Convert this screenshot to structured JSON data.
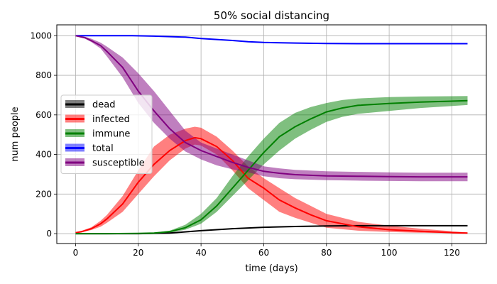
{
  "chart_data": {
    "type": "area",
    "title": "50% social distancing",
    "xlabel": "time (days)",
    "ylabel": "num people",
    "xlim": [
      -6,
      131
    ],
    "ylim": [
      -50,
      1055
    ],
    "xticks": [
      0,
      20,
      40,
      60,
      80,
      100,
      120
    ],
    "yticks": [
      0,
      200,
      400,
      600,
      800,
      1000
    ],
    "grid": true,
    "legend_position": "center-left",
    "series": [
      {
        "name": "dead",
        "color": "#000000",
        "x": [
          0,
          20,
          30,
          40,
          50,
          60,
          70,
          80,
          90,
          100,
          110,
          125
        ],
        "mean": [
          0,
          0,
          3,
          15,
          25,
          32,
          36,
          39,
          40,
          40,
          40,
          40
        ],
        "low": [
          0,
          0,
          2,
          13,
          23,
          30,
          34,
          37,
          38,
          38,
          38,
          38
        ],
        "high": [
          0,
          0,
          4,
          17,
          27,
          34,
          38,
          41,
          42,
          42,
          42,
          42
        ]
      },
      {
        "name": "infected",
        "color": "#ff0000",
        "x": [
          0,
          2,
          5,
          8,
          10,
          15,
          20,
          25,
          30,
          35,
          38,
          40,
          45,
          50,
          55,
          60,
          65,
          70,
          75,
          80,
          90,
          100,
          110,
          120,
          125
        ],
        "mean": [
          5,
          10,
          25,
          50,
          75,
          150,
          260,
          350,
          420,
          470,
          485,
          480,
          440,
          370,
          280,
          230,
          170,
          130,
          95,
          65,
          35,
          20,
          12,
          5,
          3
        ],
        "low": [
          3,
          8,
          18,
          35,
          55,
          110,
          200,
          290,
          370,
          430,
          450,
          445,
          400,
          320,
          230,
          170,
          110,
          80,
          55,
          30,
          15,
          8,
          4,
          2,
          1
        ],
        "high": [
          7,
          15,
          32,
          65,
          95,
          190,
          320,
          440,
          500,
          530,
          540,
          535,
          490,
          420,
          340,
          280,
          230,
          180,
          140,
          100,
          60,
          40,
          25,
          12,
          6
        ]
      },
      {
        "name": "immune",
        "color": "#008000",
        "x": [
          0,
          10,
          20,
          25,
          30,
          35,
          40,
          45,
          50,
          55,
          60,
          65,
          70,
          75,
          80,
          85,
          90,
          100,
          110,
          125
        ],
        "mean": [
          0,
          0,
          1,
          3,
          10,
          30,
          70,
          140,
          230,
          320,
          410,
          490,
          540,
          580,
          615,
          635,
          648,
          658,
          665,
          672
        ],
        "low": [
          0,
          0,
          0,
          1,
          5,
          20,
          50,
          110,
          190,
          270,
          350,
          420,
          480,
          525,
          565,
          590,
          605,
          620,
          635,
          650
        ],
        "high": [
          0,
          0,
          2,
          5,
          15,
          45,
          100,
          180,
          290,
          390,
          480,
          560,
          610,
          640,
          660,
          675,
          683,
          690,
          693,
          695
        ]
      },
      {
        "name": "total",
        "color": "#0000ff",
        "x": [
          0,
          10,
          18,
          25,
          35,
          40,
          45,
          50,
          55,
          60,
          70,
          80,
          90,
          100,
          110,
          125
        ],
        "mean": [
          1000,
          1000,
          1000,
          998,
          993,
          986,
          981,
          976,
          970,
          966,
          963,
          961,
          960,
          960,
          960,
          960
        ],
        "low": [
          999,
          999,
          999,
          997,
          991,
          984,
          979,
          974,
          968,
          964,
          961,
          959,
          958,
          958,
          958,
          958
        ],
        "high": [
          1001,
          1001,
          1001,
          999,
          995,
          988,
          983,
          978,
          972,
          968,
          965,
          963,
          962,
          962,
          962,
          962
        ]
      },
      {
        "name": "susceptible",
        "color": "#800080",
        "x": [
          0,
          3,
          5,
          8,
          10,
          15,
          20,
          25,
          30,
          35,
          40,
          45,
          50,
          55,
          60,
          65,
          70,
          80,
          90,
          100,
          110,
          125
        ],
        "mean": [
          1000,
          990,
          975,
          950,
          920,
          840,
          720,
          620,
          530,
          460,
          420,
          390,
          360,
          335,
          315,
          305,
          298,
          292,
          290,
          288,
          287,
          287
        ],
        "low": [
          998,
          985,
          968,
          935,
          895,
          790,
          660,
          560,
          480,
          415,
          375,
          345,
          325,
          310,
          290,
          280,
          275,
          270,
          268,
          266,
          265,
          265
        ],
        "high": [
          1002,
          995,
          985,
          965,
          945,
          890,
          810,
          720,
          620,
          520,
          460,
          430,
          400,
          370,
          340,
          330,
          322,
          315,
          312,
          310,
          308,
          308
        ]
      }
    ]
  }
}
